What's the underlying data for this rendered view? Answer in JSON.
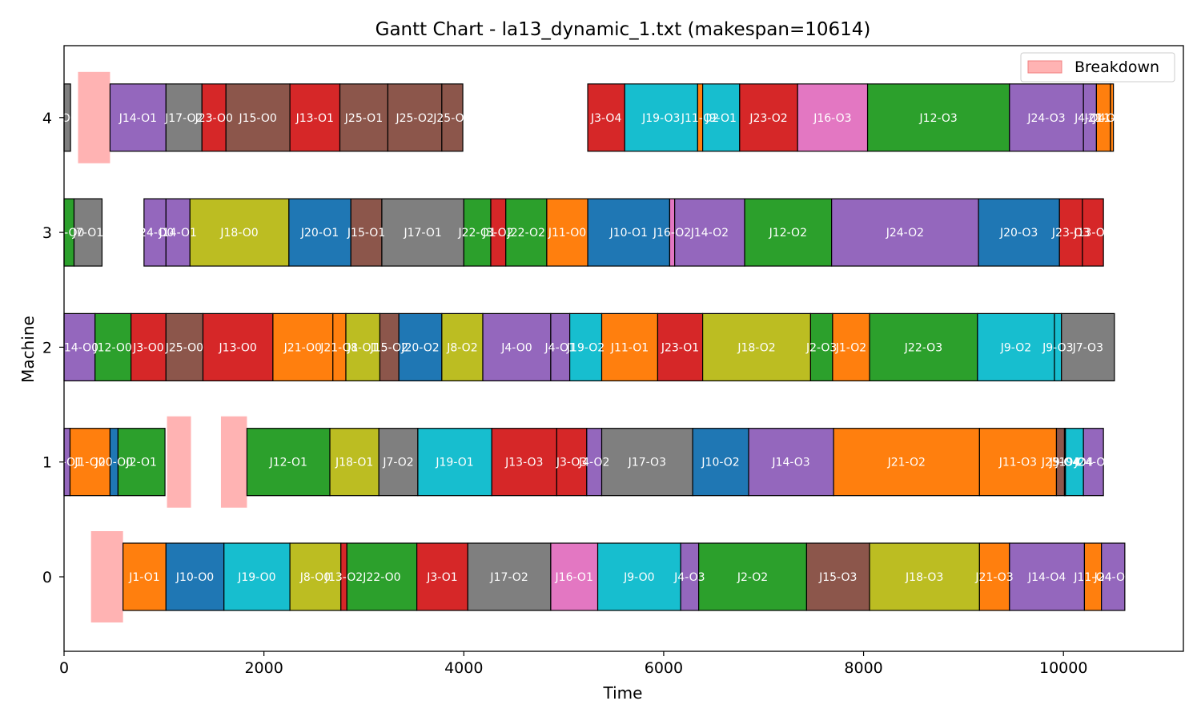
{
  "chart_data": {
    "type": "gantt",
    "title": "Gantt Chart - la13_dynamic_1.txt (makespan=10614)",
    "xlabel": "Time",
    "ylabel": "Machine",
    "xlim": [
      0,
      11200
    ],
    "xticks": [
      "0",
      "2000",
      "4000",
      "6000",
      "8000",
      "10000"
    ],
    "machines": [
      "0",
      "1",
      "2",
      "3",
      "4"
    ],
    "legend": {
      "label": "Breakdown",
      "color": "#ffb3b3",
      "position": "top-right"
    },
    "job_colors": {
      "J1": "#ff7f0e",
      "J2": "#2ca02c",
      "J3": "#d62728",
      "J4": "#9467bd",
      "J7": "#7f7f7f",
      "J8": "#bcbd22",
      "J9": "#17becf",
      "J10": "#1f77b4",
      "J11": "#ff7f0e",
      "J12": "#2ca02c",
      "J13": "#d62728",
      "J14": "#9467bd",
      "J15": "#8c564b",
      "J16": "#e377c2",
      "J17": "#7f7f7f",
      "J18": "#bcbd22",
      "J19": "#17becf",
      "J20": "#1f77b4",
      "J21": "#ff7f0e",
      "J22": "#2ca02c",
      "J23": "#d62728",
      "J24": "#9467bd",
      "J25": "#8c564b"
    },
    "breakdowns": [
      {
        "machine": 4,
        "start": 140,
        "end": 460
      },
      {
        "machine": 1,
        "start": 1030,
        "end": 1270
      },
      {
        "machine": 1,
        "start": 1570,
        "end": 1830
      },
      {
        "machine": 0,
        "start": 270,
        "end": 590
      }
    ],
    "operations": [
      {
        "machine": 4,
        "job": "J7",
        "label": "-O0",
        "start": 0,
        "end": 65
      },
      {
        "machine": 4,
        "job": "J14",
        "label": "J14-O1",
        "start": 460,
        "end": 1020
      },
      {
        "machine": 4,
        "job": "J17",
        "label": "J17-O2",
        "start": 1020,
        "end": 1380
      },
      {
        "machine": 4,
        "job": "J23",
        "label": "J23-O0",
        "start": 1380,
        "end": 1620
      },
      {
        "machine": 4,
        "job": "J15",
        "label": "J15-O0",
        "start": 1620,
        "end": 2260
      },
      {
        "machine": 4,
        "job": "J13",
        "label": "J13-O1",
        "start": 2260,
        "end": 2760
      },
      {
        "machine": 4,
        "job": "J25",
        "label": "J25-O1",
        "start": 2760,
        "end": 3240
      },
      {
        "machine": 4,
        "job": "J25",
        "label": "J25-O2",
        "start": 3240,
        "end": 3780
      },
      {
        "machine": 4,
        "job": "J25",
        "label": "J25-O3",
        "start": 3780,
        "end": 3990
      },
      {
        "machine": 4,
        "job": "J3",
        "label": "J3-O4",
        "start": 5240,
        "end": 5610
      },
      {
        "machine": 4,
        "job": "J19",
        "label": "J19-O3",
        "start": 5610,
        "end": 6340
      },
      {
        "machine": 4,
        "job": "J11",
        "label": "J11-O2",
        "start": 6340,
        "end": 6390
      },
      {
        "machine": 4,
        "job": "J9",
        "label": "J9-O1",
        "start": 6390,
        "end": 6760
      },
      {
        "machine": 4,
        "job": "J23",
        "label": "J23-O2",
        "start": 6760,
        "end": 7340
      },
      {
        "machine": 4,
        "job": "J16",
        "label": "J16-O3",
        "start": 7340,
        "end": 8040
      },
      {
        "machine": 4,
        "job": "J12",
        "label": "J12-O3",
        "start": 8040,
        "end": 9460
      },
      {
        "machine": 4,
        "job": "J24",
        "label": "J24-O3",
        "start": 9460,
        "end": 10200
      },
      {
        "machine": 4,
        "job": "J4",
        "label": "J4-O4",
        "start": 10200,
        "end": 10330
      },
      {
        "machine": 4,
        "job": "J21",
        "label": "J21-O4",
        "start": 10330,
        "end": 10470
      },
      {
        "machine": 4,
        "job": "J11",
        "label": "J11-O4",
        "start": 10470,
        "end": 10500
      },
      {
        "machine": 3,
        "job": "J2",
        "label": "J2-O0",
        "start": 0,
        "end": 100
      },
      {
        "machine": 3,
        "job": "J7",
        "label": "J7-O1",
        "start": 100,
        "end": 380
      },
      {
        "machine": 3,
        "job": "J24",
        "label": "J24-O0",
        "start": 800,
        "end": 1020
      },
      {
        "machine": 3,
        "job": "J14",
        "label": "J14-O1",
        "start": 1020,
        "end": 1260
      },
      {
        "machine": 3,
        "job": "J18",
        "label": "J18-O0",
        "start": 1260,
        "end": 2250
      },
      {
        "machine": 3,
        "job": "J20",
        "label": "J20-O1",
        "start": 2250,
        "end": 2870
      },
      {
        "machine": 3,
        "job": "J15",
        "label": "J15-O1",
        "start": 2870,
        "end": 3180
      },
      {
        "machine": 3,
        "job": "J17",
        "label": "J17-O1",
        "start": 3180,
        "end": 4000
      },
      {
        "machine": 3,
        "job": "J22",
        "label": "J22-O1",
        "start": 4000,
        "end": 4270
      },
      {
        "machine": 3,
        "job": "J3",
        "label": "J3-O2",
        "start": 4270,
        "end": 4420
      },
      {
        "machine": 3,
        "job": "J22",
        "label": "J22-O2",
        "start": 4420,
        "end": 4830
      },
      {
        "machine": 3,
        "job": "J11",
        "label": "J11-O0",
        "start": 4830,
        "end": 5240
      },
      {
        "machine": 3,
        "job": "J10",
        "label": "J10-O1",
        "start": 5240,
        "end": 6060
      },
      {
        "machine": 3,
        "job": "J16",
        "label": "J16-O2",
        "start": 6060,
        "end": 6110
      },
      {
        "machine": 3,
        "job": "J14",
        "label": "J14-O2",
        "start": 6110,
        "end": 6810
      },
      {
        "machine": 3,
        "job": "J12",
        "label": "J12-O2",
        "start": 6810,
        "end": 7680
      },
      {
        "machine": 3,
        "job": "J24",
        "label": "J24-O2",
        "start": 7680,
        "end": 9150
      },
      {
        "machine": 3,
        "job": "J20",
        "label": "J20-O3",
        "start": 9150,
        "end": 9960
      },
      {
        "machine": 3,
        "job": "J23",
        "label": "J23-O3",
        "start": 9960,
        "end": 10190
      },
      {
        "machine": 3,
        "job": "J13",
        "label": "J13-O1",
        "start": 10190,
        "end": 10400
      },
      {
        "machine": 2,
        "job": "J14",
        "label": "J14-O0",
        "start": 0,
        "end": 310
      },
      {
        "machine": 2,
        "job": "J12",
        "label": "J12-O0",
        "start": 310,
        "end": 670
      },
      {
        "machine": 2,
        "job": "J3",
        "label": "J3-O0",
        "start": 670,
        "end": 1020
      },
      {
        "machine": 2,
        "job": "J25",
        "label": "J25-O0",
        "start": 1020,
        "end": 1390
      },
      {
        "machine": 2,
        "job": "J13",
        "label": "J13-O0",
        "start": 1390,
        "end": 2090
      },
      {
        "machine": 2,
        "job": "J21",
        "label": "J21-O0",
        "start": 2090,
        "end": 2690
      },
      {
        "machine": 2,
        "job": "J21",
        "label": "J21-O1",
        "start": 2690,
        "end": 2820
      },
      {
        "machine": 2,
        "job": "J8",
        "label": "J8-O1",
        "start": 2820,
        "end": 3160
      },
      {
        "machine": 2,
        "job": "J15",
        "label": "J15-O2",
        "start": 3160,
        "end": 3350
      },
      {
        "machine": 2,
        "job": "J20",
        "label": "J20-O2",
        "start": 3350,
        "end": 3780
      },
      {
        "machine": 2,
        "job": "J8",
        "label": "J8-O2",
        "start": 3780,
        "end": 4190
      },
      {
        "machine": 2,
        "job": "J4",
        "label": "J4-O0",
        "start": 4190,
        "end": 4870
      },
      {
        "machine": 2,
        "job": "J4",
        "label": "J4-O1",
        "start": 4870,
        "end": 5060
      },
      {
        "machine": 2,
        "job": "J19",
        "label": "J19-O2",
        "start": 5060,
        "end": 5380
      },
      {
        "machine": 2,
        "job": "J11",
        "label": "J11-O1",
        "start": 5380,
        "end": 5940
      },
      {
        "machine": 2,
        "job": "J23",
        "label": "J23-O1",
        "start": 5940,
        "end": 6390
      },
      {
        "machine": 2,
        "job": "J18",
        "label": "J18-O2",
        "start": 6390,
        "end": 7470
      },
      {
        "machine": 2,
        "job": "J2",
        "label": "J2-O3",
        "start": 7470,
        "end": 7690
      },
      {
        "machine": 2,
        "job": "J1",
        "label": "J1-O2",
        "start": 7690,
        "end": 8060
      },
      {
        "machine": 2,
        "job": "J22",
        "label": "J22-O3",
        "start": 8060,
        "end": 9140
      },
      {
        "machine": 2,
        "job": "J9",
        "label": "J9-O2",
        "start": 9140,
        "end": 9910
      },
      {
        "machine": 2,
        "job": "J9",
        "label": "J9-O3",
        "start": 9910,
        "end": 9980
      },
      {
        "machine": 2,
        "job": "J7",
        "label": "J7-O3",
        "start": 9980,
        "end": 10510
      },
      {
        "machine": 1,
        "job": "J4",
        "label": "J4-O1",
        "start": 0,
        "end": 60
      },
      {
        "machine": 1,
        "job": "J1",
        "label": "J1-O0",
        "start": 60,
        "end": 460
      },
      {
        "machine": 1,
        "job": "J20",
        "label": "J20-O0",
        "start": 460,
        "end": 540
      },
      {
        "machine": 1,
        "job": "J2",
        "label": "J2-O1",
        "start": 540,
        "end": 1010
      },
      {
        "machine": 1,
        "job": "J12",
        "label": "J12-O1",
        "start": 1830,
        "end": 2660
      },
      {
        "machine": 1,
        "job": "J18",
        "label": "J18-O1",
        "start": 2660,
        "end": 3150
      },
      {
        "machine": 1,
        "job": "J7",
        "label": "J7-O2",
        "start": 3150,
        "end": 3540
      },
      {
        "machine": 1,
        "job": "J19",
        "label": "J19-O1",
        "start": 3540,
        "end": 4280
      },
      {
        "machine": 1,
        "job": "J13",
        "label": "J13-O3",
        "start": 4280,
        "end": 4930
      },
      {
        "machine": 1,
        "job": "J3",
        "label": "J3-O3",
        "start": 4930,
        "end": 5230
      },
      {
        "machine": 1,
        "job": "J4",
        "label": "J4-O2",
        "start": 5230,
        "end": 5380
      },
      {
        "machine": 1,
        "job": "J17",
        "label": "J17-O3",
        "start": 5380,
        "end": 6290
      },
      {
        "machine": 1,
        "job": "J10",
        "label": "J10-O2",
        "start": 6290,
        "end": 6850
      },
      {
        "machine": 1,
        "job": "J14",
        "label": "J14-O3",
        "start": 6850,
        "end": 7700
      },
      {
        "machine": 1,
        "job": "J21",
        "label": "J21-O2",
        "start": 7700,
        "end": 9160
      },
      {
        "machine": 1,
        "job": "J11",
        "label": "J11-O3",
        "start": 9160,
        "end": 9930
      },
      {
        "machine": 1,
        "job": "J25",
        "label": "J25-O4",
        "start": 9930,
        "end": 10010
      },
      {
        "machine": 1,
        "job": "J9",
        "label": "J9-O4",
        "start": 10010,
        "end": 10020
      },
      {
        "machine": 1,
        "job": "J19",
        "label": "J19-O4",
        "start": 10020,
        "end": 10200
      },
      {
        "machine": 1,
        "job": "J24",
        "label": "J24-O4",
        "start": 10200,
        "end": 10400
      },
      {
        "machine": 0,
        "job": "J1",
        "label": "J1-O1",
        "start": 590,
        "end": 1020
      },
      {
        "machine": 0,
        "job": "J10",
        "label": "J10-O0",
        "start": 1020,
        "end": 1600
      },
      {
        "machine": 0,
        "job": "J19",
        "label": "J19-O0",
        "start": 1600,
        "end": 2260
      },
      {
        "machine": 0,
        "job": "J8",
        "label": "J8-O0",
        "start": 2260,
        "end": 2770
      },
      {
        "machine": 0,
        "job": "J13",
        "label": "J13-O2",
        "start": 2770,
        "end": 2830
      },
      {
        "machine": 0,
        "job": "J22",
        "label": "J22-O0",
        "start": 2830,
        "end": 3530
      },
      {
        "machine": 0,
        "job": "J3",
        "label": "J3-O1",
        "start": 3530,
        "end": 4040
      },
      {
        "machine": 0,
        "job": "J17",
        "label": "J17-O2",
        "start": 4040,
        "end": 4870
      },
      {
        "machine": 0,
        "job": "J16",
        "label": "J16-O1",
        "start": 4870,
        "end": 5340
      },
      {
        "machine": 0,
        "job": "J9",
        "label": "J9-O0",
        "start": 5340,
        "end": 6170
      },
      {
        "machine": 0,
        "job": "J4",
        "label": "J4-O3",
        "start": 6170,
        "end": 6350
      },
      {
        "machine": 0,
        "job": "J2",
        "label": "J2-O2",
        "start": 6350,
        "end": 7430
      },
      {
        "machine": 0,
        "job": "J15",
        "label": "J15-O3",
        "start": 7430,
        "end": 8060
      },
      {
        "machine": 0,
        "job": "J18",
        "label": "J18-O3",
        "start": 8060,
        "end": 9160
      },
      {
        "machine": 0,
        "job": "J21",
        "label": "J21-O3",
        "start": 9160,
        "end": 9460
      },
      {
        "machine": 0,
        "job": "J14",
        "label": "J14-O4",
        "start": 9460,
        "end": 10210
      },
      {
        "machine": 0,
        "job": "J11",
        "label": "J11-O4",
        "start": 10210,
        "end": 10380
      },
      {
        "machine": 0,
        "job": "J24",
        "label": "J24-O4",
        "start": 10380,
        "end": 10614
      }
    ]
  }
}
